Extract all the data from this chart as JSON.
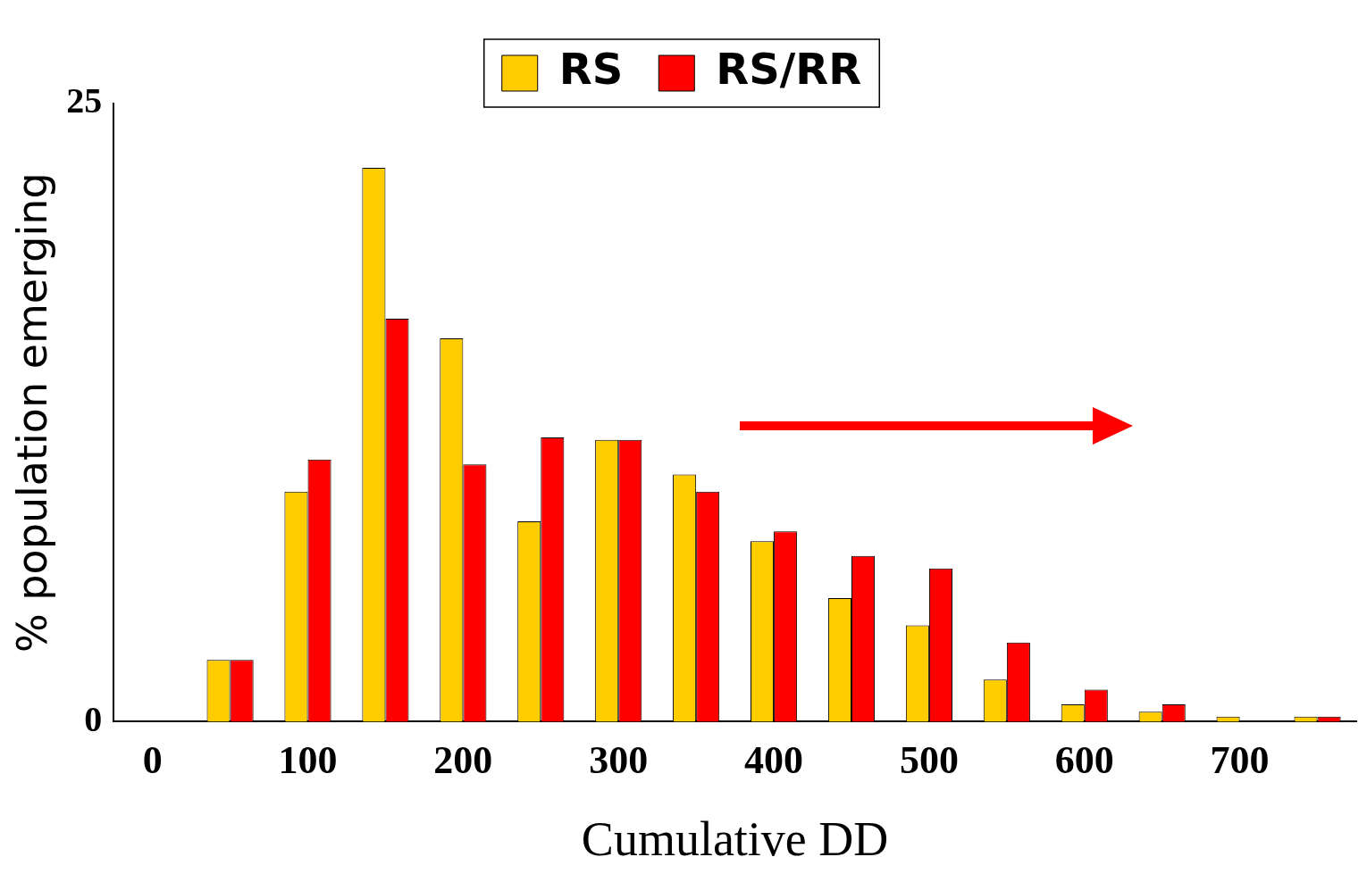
{
  "chart_data": {
    "type": "bar",
    "xlabel": "Cumulative DD",
    "ylabel": "% population emerging",
    "categories": [
      "0",
      null,
      "100",
      null,
      "200",
      null,
      "300",
      null,
      "400",
      null,
      "500",
      null,
      "600",
      null,
      "700",
      null
    ],
    "series": [
      {
        "name": "RS",
        "color": "#ffcc00",
        "values": [
          0,
          2.5,
          9.3,
          22.4,
          15.5,
          8.1,
          11.4,
          10.0,
          7.3,
          5.0,
          3.9,
          1.7,
          0.7,
          0.4,
          0.2,
          0.2
        ]
      },
      {
        "name": "RS/RR",
        "color": "#ff0000",
        "values": [
          0,
          2.5,
          10.6,
          16.3,
          10.4,
          11.5,
          11.4,
          9.3,
          7.7,
          6.7,
          6.2,
          3.2,
          1.3,
          0.7,
          0,
          0.2
        ]
      }
    ],
    "ylim": [
      0,
      25
    ],
    "yticks": [
      0,
      25
    ],
    "grid": false,
    "legend": "top"
  }
}
